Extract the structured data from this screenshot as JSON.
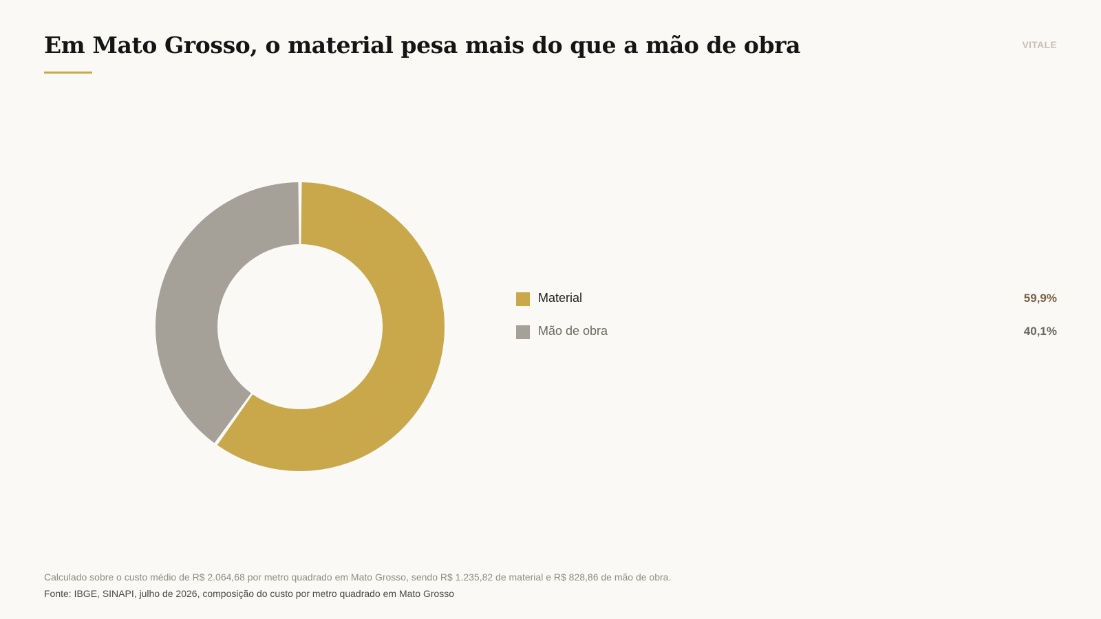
{
  "header": {
    "title": "Em Mato Grosso, o material pesa mais do que a mão de obra",
    "brand": "VITALE"
  },
  "colors": {
    "accent": "#c8a84b",
    "material": "#c8a84b",
    "labor": "#a5a098",
    "background": "#faf9f5"
  },
  "chart_data": {
    "type": "pie",
    "variant": "donut",
    "title": "Em Mato Grosso, o material pesa mais do que a mão de obra",
    "legend_position": "right",
    "slices": [
      {
        "label": "Material",
        "value": 59.9,
        "display": "59,9%",
        "color": "#c8a84b",
        "label_color": "#1f1f1f",
        "value_color": "#7a6248"
      },
      {
        "label": "Mão de obra",
        "value": 40.1,
        "display": "40,1%",
        "color": "#a5a098",
        "label_color": "#6b6862",
        "value_color": "#6b6862"
      }
    ]
  },
  "footer": {
    "note": "Calculado sobre o custo médio de R$ 2.064,68 por metro quadrado em Mato Grosso, sendo R$ 1.235,82 de material e R$ 828,86 de mão de obra.",
    "source": "Fonte: IBGE, SINAPI, julho de 2026, composição do custo por metro quadrado em Mato Grosso"
  }
}
